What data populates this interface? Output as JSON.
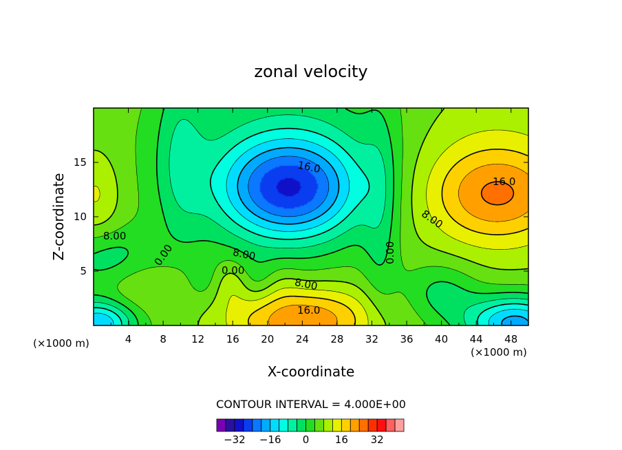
{
  "chart_data": {
    "type": "heatmap",
    "title": "zonal velocity",
    "xlabel": "X-coordinate",
    "ylabel": "Z-coordinate",
    "x_unit_left": "(×1000 m)",
    "x_unit_right": "(×1000 m)",
    "xlim": [
      0,
      50
    ],
    "ylim": [
      0,
      20
    ],
    "x_ticks": [
      4,
      8,
      12,
      16,
      20,
      24,
      28,
      32,
      36,
      40,
      44,
      48
    ],
    "y_ticks": [
      5,
      10,
      15
    ],
    "contour_interval_text": "CONTOUR INTERVAL = 4.000E+00",
    "contour_labels": [
      "8.00",
      "0.00",
      "16.0",
      "8.00",
      "0.00",
      "8.00",
      "16.0",
      "0.00",
      "8.00",
      "16.0"
    ],
    "colorbar": {
      "levels": [
        -36,
        -32,
        -28,
        -24,
        -20,
        -16,
        -12,
        -8,
        -4,
        0,
        4,
        8,
        12,
        16,
        20,
        24,
        28,
        32,
        36
      ],
      "colors": [
        "#7a00b4",
        "#2a10a0",
        "#1010c8",
        "#0a3cf0",
        "#0a78ff",
        "#00aaff",
        "#00dcff",
        "#00ffe0",
        "#00f0a0",
        "#00e060",
        "#22dd22",
        "#66e010",
        "#aaf000",
        "#e8f000",
        "#ffd000",
        "#ffa000",
        "#ff7000",
        "#ff3000",
        "#ff1010",
        "#ff6060",
        "#ffa0a0"
      ],
      "tick_labels": [
        "−32",
        "−16",
        "0",
        "16",
        "32"
      ],
      "tick_values": [
        -32,
        -16,
        0,
        16,
        32
      ]
    },
    "features": [
      {
        "kind": "min",
        "x": 22.5,
        "z": 12.5,
        "value": -20,
        "label": "16.0"
      },
      {
        "kind": "max",
        "x": 46.5,
        "z": 12.0,
        "value": 22,
        "label": "16.0"
      },
      {
        "kind": "max",
        "x": 24.0,
        "z": 0.5,
        "value": 22,
        "label": "16.0"
      },
      {
        "kind": "max",
        "x": 0.5,
        "z": 12.0,
        "value": 18
      },
      {
        "kind": "min",
        "x": 48.0,
        "z": 0.5,
        "value": -20
      },
      {
        "kind": "min",
        "x": 1.0,
        "z": 0.5,
        "value": -20
      }
    ]
  }
}
